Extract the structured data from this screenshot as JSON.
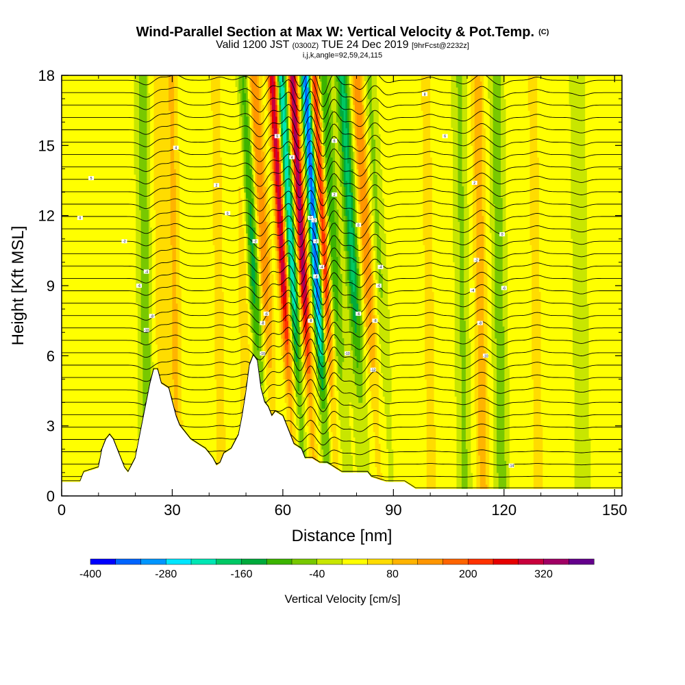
{
  "chart_data": {
    "type": "heatmap",
    "title": "Wind-Parallel Section at Max W: Vertical Velocity & Pot.Temp.",
    "title_unit": "(C)",
    "subtitle_parts": [
      "Valid 1200 JST",
      "(0300Z)",
      "TUE 24 Dec 2019",
      "[9hrFcst@2232z]"
    ],
    "subtitle2": "i,j,k,angle=92,59,24,115",
    "xlabel": "Distance [nm]",
    "ylabel": "Height [Kft MSL]",
    "xlim": [
      0,
      152
    ],
    "ylim": [
      0,
      18
    ],
    "x_ticks": [
      0,
      30,
      60,
      90,
      120,
      150
    ],
    "y_ticks": [
      0,
      3,
      6,
      9,
      12,
      15,
      18
    ],
    "colorbar": {
      "label": "Vertical Velocity [cm/s]",
      "range": [
        -400,
        400
      ],
      "tick_values": [
        -400,
        -280,
        -160,
        -40,
        80,
        200,
        320
      ],
      "tick_labels": [
        "-400",
        "-280",
        "-160",
        "-40",
        "80",
        "200",
        "320"
      ],
      "colors": [
        "#0000ff",
        "#0064ff",
        "#0096ff",
        "#00e6ff",
        "#00e6b4",
        "#00c864",
        "#00aa3c",
        "#3cb400",
        "#78c800",
        "#c8e600",
        "#ffff00",
        "#ffdc00",
        "#ffb400",
        "#ff9600",
        "#ff6400",
        "#ff3200",
        "#e60000",
        "#c8003c",
        "#a00064",
        "#64008c"
      ]
    },
    "w_field_description_bands": [
      {
        "x": 23,
        "w": -90
      },
      {
        "x": 27,
        "w": 60
      },
      {
        "x": 31,
        "w": 100
      },
      {
        "x": 43,
        "w": 60
      },
      {
        "x": 50,
        "w": 80
      },
      {
        "x": 54,
        "w": -160
      },
      {
        "x": 57,
        "w": 150
      },
      {
        "x": 62,
        "w": 300
      },
      {
        "x": 64.5,
        "w": -250
      },
      {
        "x": 67.5,
        "w": 330
      },
      {
        "x": 71,
        "w": -360
      },
      {
        "x": 73.5,
        "w": 230
      },
      {
        "x": 76,
        "w": -120
      },
      {
        "x": 81,
        "w": -180
      },
      {
        "x": 85,
        "w": 150
      },
      {
        "x": 88,
        "w": -60
      },
      {
        "x": 100,
        "w": 60
      },
      {
        "x": 109,
        "w": -70
      },
      {
        "x": 114,
        "w": 120
      },
      {
        "x": 119,
        "w": -90
      },
      {
        "x": 129,
        "w": 60
      },
      {
        "x": 141,
        "w": -60
      }
    ],
    "terrain_kft": [
      [
        0,
        0.6
      ],
      [
        5,
        0.6
      ],
      [
        6,
        1.0
      ],
      [
        10,
        1.2
      ],
      [
        11,
        2.0
      ],
      [
        12,
        2.4
      ],
      [
        13,
        2.6
      ],
      [
        14,
        2.4
      ],
      [
        15,
        2.0
      ],
      [
        16,
        1.6
      ],
      [
        17,
        1.2
      ],
      [
        18,
        1.0
      ],
      [
        20,
        1.6
      ],
      [
        21,
        2.4
      ],
      [
        22,
        3.2
      ],
      [
        23,
        4.0
      ],
      [
        24,
        4.8
      ],
      [
        25,
        5.4
      ],
      [
        26,
        5.4
      ],
      [
        27,
        4.8
      ],
      [
        29,
        4.6
      ],
      [
        30,
        4.0
      ],
      [
        31,
        3.4
      ],
      [
        32,
        3.0
      ],
      [
        33,
        2.8
      ],
      [
        35,
        2.4
      ],
      [
        37,
        2.2
      ],
      [
        39,
        2.0
      ],
      [
        40,
        1.8
      ],
      [
        41,
        1.6
      ],
      [
        42,
        1.3
      ],
      [
        43,
        1.4
      ],
      [
        44,
        1.8
      ],
      [
        46,
        2.0
      ],
      [
        48,
        2.6
      ],
      [
        49,
        3.4
      ],
      [
        50,
        4.4
      ],
      [
        51,
        5.6
      ],
      [
        52,
        6.0
      ],
      [
        53,
        5.8
      ],
      [
        54,
        4.6
      ],
      [
        55,
        4.0
      ],
      [
        56,
        3.8
      ],
      [
        57,
        3.4
      ],
      [
        58,
        3.6
      ],
      [
        60,
        3.4
      ],
      [
        61,
        3.0
      ],
      [
        62,
        2.6
      ],
      [
        63,
        2.2
      ],
      [
        65,
        2.0
      ],
      [
        66,
        1.6
      ],
      [
        68,
        1.6
      ],
      [
        70,
        1.4
      ],
      [
        72,
        1.4
      ],
      [
        74,
        1.2
      ],
      [
        76,
        1.0
      ],
      [
        80,
        1.0
      ],
      [
        83,
        1.0
      ],
      [
        84,
        0.8
      ],
      [
        88,
        0.6
      ],
      [
        93,
        0.6
      ],
      [
        96,
        0.3
      ],
      [
        152,
        0.3
      ]
    ],
    "theta_contour_labels": [
      {
        "x": 31,
        "y": 14.9,
        "text": "4"
      },
      {
        "x": 42,
        "y": 13.3,
        "text": "2"
      },
      {
        "x": 45,
        "y": 12.1,
        "text": "0"
      },
      {
        "x": 8,
        "y": 13.6,
        "text": "5"
      },
      {
        "x": 5,
        "y": 11.9,
        "text": "0"
      },
      {
        "x": 17,
        "y": 10.9,
        "text": "-2"
      },
      {
        "x": 23,
        "y": 9.6,
        "text": "-4"
      },
      {
        "x": 21,
        "y": 9.0,
        "text": "-6"
      },
      {
        "x": 24.5,
        "y": 7.7,
        "text": "-8"
      },
      {
        "x": 23,
        "y": 7.1,
        "text": "-10"
      },
      {
        "x": 52.5,
        "y": 10.9,
        "text": "-2"
      },
      {
        "x": 54.5,
        "y": 7.4,
        "text": "-8"
      },
      {
        "x": 55.5,
        "y": 7.8,
        "text": "-6"
      },
      {
        "x": 54.5,
        "y": 6.1,
        "text": "-10"
      },
      {
        "x": 58.5,
        "y": 15.4,
        "text": "6"
      },
      {
        "x": 62.5,
        "y": 14.5,
        "text": "4"
      },
      {
        "x": 67.5,
        "y": 11.9,
        "text": "0"
      },
      {
        "x": 68.5,
        "y": 11.8,
        "text": "-2"
      },
      {
        "x": 69,
        "y": 10.9,
        "text": "-2"
      },
      {
        "x": 69,
        "y": 9.4,
        "text": "-4"
      },
      {
        "x": 70.5,
        "y": 9.8,
        "text": "-4"
      },
      {
        "x": 67.5,
        "y": 7.5,
        "text": "-8"
      },
      {
        "x": 74,
        "y": 15.2,
        "text": "6"
      },
      {
        "x": 74,
        "y": 12.9,
        "text": "2"
      },
      {
        "x": 80.5,
        "y": 11.6,
        "text": "0"
      },
      {
        "x": 80.5,
        "y": 7.8,
        "text": "-6"
      },
      {
        "x": 77.5,
        "y": 6.1,
        "text": "-10"
      },
      {
        "x": 84.5,
        "y": 5.4,
        "text": "-12"
      },
      {
        "x": 86.5,
        "y": 9.8,
        "text": "-4"
      },
      {
        "x": 86,
        "y": 9.0,
        "text": "-6"
      },
      {
        "x": 85,
        "y": 7.5,
        "text": "-8"
      },
      {
        "x": 98.5,
        "y": 17.2,
        "text": "8"
      },
      {
        "x": 104,
        "y": 15.4,
        "text": "6"
      },
      {
        "x": 112,
        "y": 13.4,
        "text": "2"
      },
      {
        "x": 119.5,
        "y": 11.2,
        "text": "0"
      },
      {
        "x": 112.5,
        "y": 10.1,
        "text": "-2"
      },
      {
        "x": 111.5,
        "y": 8.8,
        "text": "-4"
      },
      {
        "x": 120,
        "y": 8.9,
        "text": "-6"
      },
      {
        "x": 113.5,
        "y": 7.4,
        "text": "-8"
      },
      {
        "x": 115,
        "y": 6.0,
        "text": "-10"
      },
      {
        "x": 122,
        "y": 1.3,
        "text": "-14"
      }
    ]
  }
}
